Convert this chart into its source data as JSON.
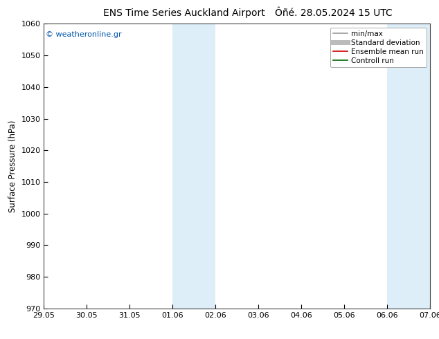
{
  "title1": "ENS Time Series Auckland Airport",
  "title2": "Ôñé. 28.05.2024 15 UTC",
  "ylabel": "Surface Pressure (hPa)",
  "ylim": [
    970,
    1060
  ],
  "yticks": [
    970,
    980,
    990,
    1000,
    1010,
    1020,
    1030,
    1040,
    1050,
    1060
  ],
  "xlabels": [
    "29.05",
    "30.05",
    "31.05",
    "01.06",
    "02.06",
    "03.06",
    "04.06",
    "05.06",
    "06.06",
    "07.06"
  ],
  "xvalues": [
    0,
    1,
    2,
    3,
    4,
    5,
    6,
    7,
    8,
    9
  ],
  "shaded_bands": [
    {
      "xmin": 3,
      "xmax": 4,
      "color": "#ddeef8"
    },
    {
      "xmin": 8,
      "xmax": 9,
      "color": "#ddeef8"
    }
  ],
  "legend_entries": [
    {
      "label": "min/max",
      "color": "#999999",
      "lw": 1.2
    },
    {
      "label": "Standard deviation",
      "color": "#bbbbbb",
      "lw": 5
    },
    {
      "label": "Ensemble mean run",
      "color": "#cc0000",
      "lw": 1.2
    },
    {
      "label": "Controll run",
      "color": "#006600",
      "lw": 1.2
    }
  ],
  "watermark": "© weatheronline.gr",
  "watermark_color": "#0055aa",
  "bg_color": "#ffffff",
  "plot_bg_color": "#ffffff",
  "border_color": "#444444",
  "title_fontsize": 10,
  "tick_fontsize": 8,
  "ylabel_fontsize": 8.5,
  "legend_fontsize": 7.5
}
